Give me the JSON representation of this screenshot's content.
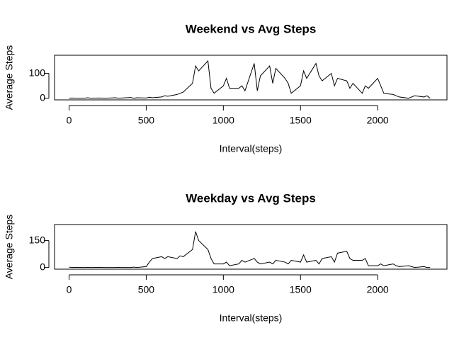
{
  "chart_data": [
    {
      "type": "line",
      "title": "Weekend vs Avg Steps",
      "xlabel": "Interval(steps)",
      "ylabel": "Average Steps",
      "x": [
        0,
        20,
        40,
        100,
        120,
        140,
        200,
        220,
        240,
        300,
        320,
        340,
        400,
        420,
        440,
        500,
        520,
        540,
        600,
        620,
        640,
        700,
        720,
        740,
        800,
        820,
        840,
        900,
        920,
        940,
        1000,
        1020,
        1040,
        1100,
        1120,
        1140,
        1200,
        1220,
        1240,
        1300,
        1320,
        1340,
        1400,
        1420,
        1440,
        1500,
        1520,
        1540,
        1600,
        1620,
        1640,
        1700,
        1720,
        1740,
        1800,
        1820,
        1840,
        1900,
        1920,
        1940,
        2000,
        2020,
        2040,
        2100,
        2120,
        2140,
        2200,
        2220,
        2240,
        2300,
        2320,
        2340
      ],
      "series": [
        {
          "color": "#000000",
          "values": [
            0,
            1,
            0,
            0,
            2,
            0,
            1,
            0,
            0,
            2,
            0,
            1,
            3,
            0,
            2,
            1,
            4,
            2,
            5,
            10,
            8,
            15,
            20,
            25,
            60,
            130,
            110,
            150,
            40,
            20,
            50,
            80,
            40,
            40,
            50,
            30,
            140,
            30,
            90,
            130,
            60,
            120,
            80,
            60,
            20,
            50,
            110,
            80,
            140,
            90,
            70,
            100,
            50,
            80,
            70,
            40,
            60,
            20,
            50,
            40,
            80,
            50,
            20,
            15,
            10,
            5,
            0,
            5,
            10,
            5,
            10,
            0
          ]
        }
      ],
      "xlim": [
        -94.2,
        2449.2
      ],
      "ylim": [
        -6.6,
        173
      ],
      "xticks": [
        0,
        500,
        1000,
        1500,
        2000
      ],
      "yticks": [
        0,
        100
      ]
    },
    {
      "type": "line",
      "title": "Weekday vs Avg Steps",
      "xlabel": "Interval(steps)",
      "ylabel": "Average Steps",
      "x": [
        0,
        20,
        40,
        100,
        120,
        140,
        200,
        220,
        240,
        300,
        320,
        340,
        400,
        420,
        440,
        500,
        520,
        540,
        600,
        620,
        640,
        700,
        720,
        740,
        800,
        820,
        840,
        900,
        920,
        940,
        1000,
        1020,
        1040,
        1100,
        1120,
        1140,
        1200,
        1220,
        1240,
        1300,
        1320,
        1340,
        1400,
        1420,
        1440,
        1500,
        1520,
        1540,
        1600,
        1620,
        1640,
        1700,
        1720,
        1740,
        1800,
        1820,
        1840,
        1900,
        1920,
        1940,
        2000,
        2020,
        2040,
        2100,
        2120,
        2140,
        2200,
        2220,
        2240,
        2300,
        2320,
        2340
      ],
      "series": [
        {
          "color": "#000000",
          "values": [
            2,
            0,
            1,
            0,
            1,
            0,
            1,
            0,
            0,
            0,
            1,
            0,
            0,
            2,
            0,
            5,
            30,
            50,
            60,
            50,
            60,
            50,
            65,
            60,
            100,
            200,
            150,
            100,
            50,
            20,
            20,
            30,
            10,
            20,
            40,
            30,
            50,
            30,
            20,
            30,
            20,
            40,
            30,
            20,
            40,
            30,
            70,
            30,
            40,
            20,
            50,
            60,
            30,
            80,
            90,
            50,
            40,
            40,
            50,
            10,
            10,
            20,
            10,
            20,
            10,
            5,
            10,
            5,
            0,
            5,
            0,
            0
          ]
        }
      ],
      "xlim": [
        -94.2,
        2449.2
      ],
      "ylim": [
        -9.2,
        239
      ],
      "xticks": [
        0,
        500,
        1000,
        1500,
        2000
      ],
      "yticks": [
        0,
        150
      ]
    }
  ]
}
